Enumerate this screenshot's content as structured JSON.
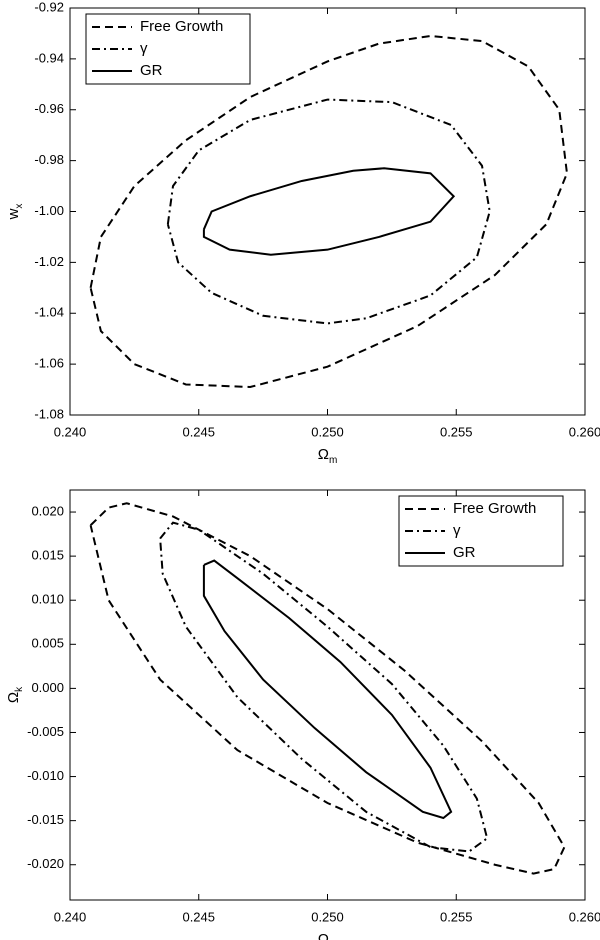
{
  "chart_data": [
    {
      "type": "line",
      "x_label": {
        "text": "Ω",
        "sub": "m"
      },
      "y_label": {
        "text": "w",
        "sub": "x"
      },
      "xlim": [
        0.24,
        0.26
      ],
      "xticks": [
        {
          "value": 0.24,
          "label": "0.240"
        },
        0.245,
        {
          "value": 0.25,
          "label": "0.250"
        },
        0.255,
        {
          "value": 0.26,
          "label": "0.260"
        }
      ],
      "ylim": [
        -1.08,
        -0.92
      ],
      "yticks": [
        {
          "value": -1.08,
          "label": "-1.08"
        },
        {
          "value": -1.06,
          "label": "-1.06"
        },
        {
          "value": -1.04,
          "label": "-1.04"
        },
        {
          "value": -1.02,
          "label": "-1.02"
        },
        {
          "value": -1.0,
          "label": "-1.00"
        },
        {
          "value": -0.98,
          "label": "-0.98"
        },
        {
          "value": -0.96,
          "label": "-0.96"
        },
        {
          "value": -0.94,
          "label": "-0.94"
        },
        {
          "value": -0.92,
          "label": "-0.92"
        }
      ],
      "legend": "upper left",
      "series": [
        {
          "name": "Free Growth",
          "color": "#000000",
          "dash": "dashed",
          "x": [
            0.2408,
            0.2412,
            0.2425,
            0.2445,
            0.247,
            0.25,
            0.252,
            0.254,
            0.256,
            0.2578,
            0.259,
            0.2593,
            0.2585,
            0.2565,
            0.2535,
            0.25,
            0.247,
            0.2445,
            0.2425,
            0.2412,
            0.2408
          ],
          "values": [
            -1.03,
            -1.01,
            -0.99,
            -0.972,
            -0.955,
            -0.941,
            -0.934,
            -0.931,
            -0.933,
            -0.943,
            -0.96,
            -0.985,
            -1.005,
            -1.025,
            -1.045,
            -1.061,
            -1.069,
            -1.068,
            -1.06,
            -1.047,
            -1.03
          ]
        },
        {
          "name": "γ",
          "color": "#000000",
          "dash": "dashdot",
          "x": [
            0.2438,
            0.244,
            0.245,
            0.247,
            0.25,
            0.2525,
            0.2548,
            0.256,
            0.2563,
            0.2558,
            0.254,
            0.2515,
            0.25,
            0.2475,
            0.2455,
            0.2442,
            0.2438
          ],
          "values": [
            -1.005,
            -0.99,
            -0.976,
            -0.964,
            -0.956,
            -0.957,
            -0.966,
            -0.982,
            -1.0,
            -1.018,
            -1.033,
            -1.042,
            -1.044,
            -1.041,
            -1.032,
            -1.02,
            -1.005
          ]
        },
        {
          "name": "GR",
          "color": "#000000",
          "dash": "solid",
          "x": [
            0.2452,
            0.2455,
            0.247,
            0.249,
            0.251,
            0.2522,
            0.254,
            0.2549,
            0.254,
            0.252,
            0.25,
            0.2478,
            0.2462,
            0.2452,
            0.2452
          ],
          "values": [
            -1.007,
            -1.0,
            -0.994,
            -0.988,
            -0.984,
            -0.983,
            -0.985,
            -0.994,
            -1.004,
            -1.01,
            -1.015,
            -1.017,
            -1.015,
            -1.01,
            -1.007
          ]
        }
      ]
    },
    {
      "type": "line",
      "x_label": {
        "text": "Ω",
        "sub": "m"
      },
      "y_label": {
        "text": "Ω",
        "sub": "k"
      },
      "xlim": [
        0.24,
        0.26
      ],
      "xticks": [
        {
          "value": 0.24,
          "label": "0.240"
        },
        0.245,
        {
          "value": 0.25,
          "label": "0.250"
        },
        0.255,
        {
          "value": 0.26,
          "label": "0.260"
        }
      ],
      "ylim": [
        -0.024,
        0.0225
      ],
      "yticks": [
        {
          "value": -0.02,
          "label": "-0.020"
        },
        -0.015,
        {
          "value": -0.01,
          "label": "-0.010"
        },
        -0.005,
        {
          "value": 0,
          "label": "0.000"
        },
        0.005,
        {
          "value": 0.01,
          "label": "0.010"
        },
        0.015,
        {
          "value": 0.02,
          "label": "0.020"
        }
      ],
      "legend": "upper right",
      "series": [
        {
          "name": "Free Growth",
          "color": "#000000",
          "dash": "dashed",
          "x": [
            0.2408,
            0.2415,
            0.2422,
            0.244,
            0.247,
            0.25,
            0.253,
            0.256,
            0.2582,
            0.2592,
            0.2588,
            0.258,
            0.2565,
            0.2535,
            0.25,
            0.2465,
            0.2435,
            0.2415,
            0.2408
          ],
          "values": [
            0.0185,
            0.0205,
            0.021,
            0.0195,
            0.015,
            0.009,
            0.002,
            -0.006,
            -0.013,
            -0.018,
            -0.0205,
            -0.021,
            -0.02,
            -0.0175,
            -0.013,
            -0.007,
            0.001,
            0.01,
            0.0185
          ]
        },
        {
          "name": "γ",
          "color": "#000000",
          "dash": "dashdot",
          "x": [
            0.2435,
            0.244,
            0.245,
            0.2475,
            0.25,
            0.2525,
            0.2545,
            0.2558,
            0.2562,
            0.2555,
            0.254,
            0.2515,
            0.249,
            0.2465,
            0.2445,
            0.2436,
            0.2435
          ],
          "values": [
            0.017,
            0.0188,
            0.018,
            0.013,
            0.007,
            0.0005,
            -0.0065,
            -0.0125,
            -0.017,
            -0.0185,
            -0.018,
            -0.014,
            -0.008,
            -0.001,
            0.007,
            0.013,
            0.017
          ]
        },
        {
          "name": "GR",
          "color": "#000000",
          "dash": "solid",
          "x": [
            0.2452,
            0.2456,
            0.2465,
            0.2485,
            0.2505,
            0.2525,
            0.254,
            0.2548,
            0.2545,
            0.2537,
            0.2515,
            0.2495,
            0.2475,
            0.246,
            0.2452,
            0.2452
          ],
          "values": [
            0.014,
            0.0145,
            0.0125,
            0.008,
            0.003,
            -0.003,
            -0.009,
            -0.014,
            -0.0147,
            -0.014,
            -0.0095,
            -0.0045,
            0.001,
            0.0065,
            0.0105,
            0.014
          ]
        }
      ]
    }
  ]
}
